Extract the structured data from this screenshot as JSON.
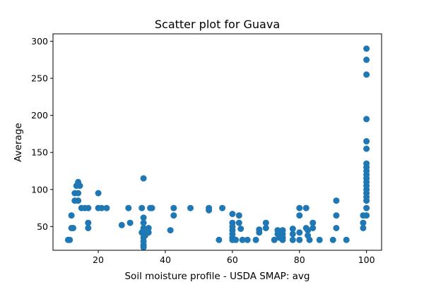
{
  "chart_data": {
    "type": "scatter",
    "title": "Scatter plot for Guava",
    "xlabel": "Soil moisture profile - USDA SMAP: avg",
    "ylabel": "Average",
    "xlim": [
      6.5,
      104.5
    ],
    "ylim": [
      18,
      310
    ],
    "xticks": [
      20,
      40,
      60,
      80,
      100
    ],
    "yticks": [
      50,
      100,
      150,
      200,
      250,
      300
    ],
    "grid": false,
    "legend": "none",
    "marker_color": "#1f77b4",
    "points": [
      [
        11,
        32
      ],
      [
        11.5,
        32
      ],
      [
        12,
        48
      ],
      [
        12,
        65
      ],
      [
        12.5,
        48
      ],
      [
        13,
        95
      ],
      [
        13,
        85
      ],
      [
        13.5,
        105
      ],
      [
        14,
        110
      ],
      [
        14,
        95
      ],
      [
        14,
        85
      ],
      [
        14.5,
        105
      ],
      [
        15,
        75
      ],
      [
        16,
        75
      ],
      [
        17,
        75
      ],
      [
        17,
        55
      ],
      [
        17,
        48
      ],
      [
        20,
        95
      ],
      [
        20,
        75
      ],
      [
        21,
        75
      ],
      [
        22.5,
        75
      ],
      [
        27,
        52
      ],
      [
        29,
        75
      ],
      [
        29.5,
        55
      ],
      [
        33,
        75
      ],
      [
        33,
        42
      ],
      [
        33.5,
        115
      ],
      [
        33.5,
        62
      ],
      [
        33.5,
        55
      ],
      [
        33.5,
        48
      ],
      [
        33.5,
        45
      ],
      [
        33.5,
        40
      ],
      [
        33.5,
        35
      ],
      [
        33.5,
        30
      ],
      [
        33.5,
        25
      ],
      [
        33.5,
        22
      ],
      [
        34,
        38
      ],
      [
        35,
        42
      ],
      [
        35,
        48
      ],
      [
        35.5,
        75
      ],
      [
        36,
        75
      ],
      [
        41.5,
        45
      ],
      [
        42.5,
        65
      ],
      [
        42.5,
        75
      ],
      [
        47.5,
        75
      ],
      [
        53,
        75
      ],
      [
        53,
        72
      ],
      [
        56,
        32
      ],
      [
        57,
        75
      ],
      [
        60,
        67
      ],
      [
        60,
        55
      ],
      [
        60,
        50
      ],
      [
        60,
        45
      ],
      [
        60,
        40
      ],
      [
        60,
        35
      ],
      [
        60,
        32
      ],
      [
        61,
        32
      ],
      [
        62,
        65
      ],
      [
        62,
        55
      ],
      [
        62.5,
        47
      ],
      [
        63,
        32
      ],
      [
        64.5,
        32
      ],
      [
        67,
        32
      ],
      [
        68,
        46
      ],
      [
        68,
        42
      ],
      [
        70,
        55
      ],
      [
        70,
        48
      ],
      [
        72.5,
        32
      ],
      [
        73.5,
        45
      ],
      [
        73.5,
        40
      ],
      [
        74,
        35
      ],
      [
        75,
        45
      ],
      [
        75,
        40
      ],
      [
        75,
        35
      ],
      [
        75,
        32
      ],
      [
        78,
        47
      ],
      [
        78,
        40
      ],
      [
        78,
        32
      ],
      [
        80,
        75
      ],
      [
        80,
        65
      ],
      [
        80,
        42
      ],
      [
        80,
        32
      ],
      [
        82,
        75
      ],
      [
        82,
        48
      ],
      [
        82.5,
        45
      ],
      [
        82.5,
        38
      ],
      [
        83,
        32
      ],
      [
        84,
        48
      ],
      [
        84,
        55
      ],
      [
        86,
        32
      ],
      [
        90,
        32
      ],
      [
        91,
        85
      ],
      [
        91,
        65
      ],
      [
        91,
        48
      ],
      [
        94,
        32
      ],
      [
        99,
        65
      ],
      [
        99,
        55
      ],
      [
        99,
        48
      ],
      [
        100,
        290
      ],
      [
        100,
        275
      ],
      [
        100,
        255
      ],
      [
        100,
        195
      ],
      [
        100,
        165
      ],
      [
        100,
        155
      ],
      [
        100,
        135
      ],
      [
        100,
        130
      ],
      [
        100,
        125
      ],
      [
        100,
        120
      ],
      [
        100,
        115
      ],
      [
        100,
        110
      ],
      [
        100,
        105
      ],
      [
        100,
        100
      ],
      [
        100,
        95
      ],
      [
        100,
        90
      ],
      [
        100,
        85
      ],
      [
        100,
        75
      ],
      [
        100,
        65
      ]
    ]
  }
}
